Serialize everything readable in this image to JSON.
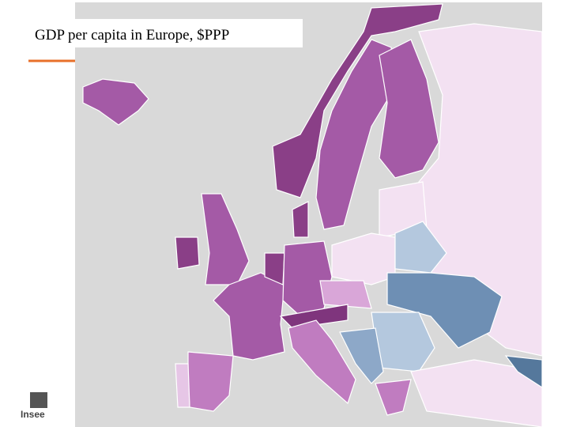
{
  "title": "GDP per capita in Europe, $PPP",
  "logo": "Insee"
}
